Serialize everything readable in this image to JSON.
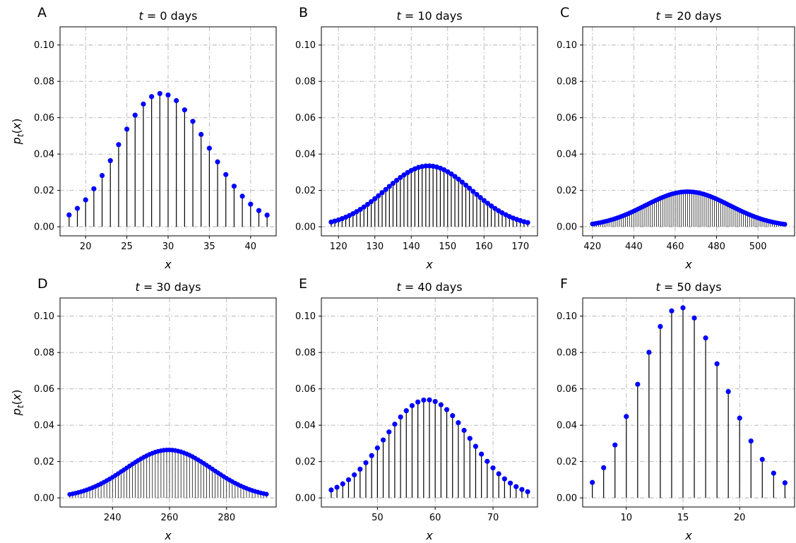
{
  "chart_data": [
    {
      "type": "stem",
      "panel_label": "A",
      "title_prefix": "t",
      "title_rest": " = 0 days",
      "xlabel": "x",
      "ylabel": "p_t(x)",
      "ylim": [
        -0.005,
        0.11
      ],
      "xlim": [
        16.9,
        43.1
      ],
      "xticks": [
        20,
        25,
        30,
        35,
        40
      ],
      "yticks": [
        "0.00",
        "0.02",
        "0.04",
        "0.06",
        "0.08",
        "0.10"
      ],
      "x": [
        18,
        19,
        20,
        21,
        22,
        23,
        24,
        25,
        26,
        27,
        28,
        29,
        30,
        31,
        32,
        33,
        34,
        35,
        36,
        37,
        38,
        39,
        40,
        41,
        42
      ],
      "values": [
        0.0065,
        0.0101,
        0.0148,
        0.0209,
        0.0282,
        0.0364,
        0.0452,
        0.0537,
        0.0614,
        0.0675,
        0.0716,
        0.0733,
        0.0725,
        0.0694,
        0.0643,
        0.058,
        0.0508,
        0.0432,
        0.0357,
        0.0287,
        0.0223,
        0.0168,
        0.0124,
        0.0089,
        0.0064
      ]
    },
    {
      "type": "stem",
      "panel_label": "B",
      "title_prefix": "t",
      "title_rest": " = 10 days",
      "xlabel": "x",
      "ylabel": "",
      "ylim": [
        -0.005,
        0.11
      ],
      "xlim": [
        115.3,
        174.7
      ],
      "xticks": [
        120,
        130,
        140,
        150,
        160,
        170
      ],
      "yticks": [
        "0.00",
        "0.02",
        "0.04",
        "0.06",
        "0.08",
        "0.10"
      ],
      "gauss": {
        "start": 118,
        "end": 172,
        "step": 1,
        "mu": 144.7,
        "sigma": 11.8,
        "peak": 0.0335
      }
    },
    {
      "type": "stem",
      "panel_label": "C",
      "title_prefix": "t",
      "title_rest": " = 20 days",
      "xlabel": "x",
      "ylabel": "",
      "ylim": [
        -0.005,
        0.11
      ],
      "xlim": [
        415.3,
        517.7
      ],
      "xticks": [
        420,
        440,
        460,
        480,
        500
      ],
      "yticks": [
        "0.00",
        "0.02",
        "0.04",
        "0.06",
        "0.08",
        "0.10"
      ],
      "gauss": {
        "start": 420,
        "end": 513,
        "step": 1,
        "mu": 466,
        "sigma": 20.5,
        "peak": 0.0193
      }
    },
    {
      "type": "stem",
      "panel_label": "D",
      "title_prefix": "t",
      "title_rest": " = 30 days",
      "xlabel": "x",
      "ylabel": "p_t(x)",
      "ylim": [
        -0.005,
        0.11
      ],
      "xlim": [
        221.6,
        297.4
      ],
      "xticks": [
        240,
        260,
        280
      ],
      "yticks": [
        "0.00",
        "0.02",
        "0.04",
        "0.06",
        "0.08",
        "0.10"
      ],
      "gauss": {
        "start": 225,
        "end": 294,
        "step": 1,
        "mu": 259.7,
        "sigma": 15.2,
        "peak": 0.0264
      }
    },
    {
      "type": "stem",
      "panel_label": "E",
      "title_prefix": "t",
      "title_rest": " = 40 days",
      "xlabel": "x",
      "ylabel": "",
      "ylim": [
        -0.005,
        0.11
      ],
      "xlim": [
        40.3,
        77.7
      ],
      "xticks": [
        50,
        60,
        70
      ],
      "yticks": [
        "0.00",
        "0.02",
        "0.04",
        "0.06",
        "0.08",
        "0.10"
      ],
      "gauss": {
        "start": 42,
        "end": 76,
        "step": 1,
        "mu": 58.6,
        "sigma": 7.4,
        "peak": 0.054
      }
    },
    {
      "type": "stem",
      "panel_label": "F",
      "title_prefix": "t",
      "title_rest": " = 50 days",
      "xlabel": "x",
      "ylabel": "",
      "ylim": [
        -0.005,
        0.11
      ],
      "xlim": [
        6.15,
        24.85
      ],
      "xticks": [
        10,
        15,
        20
      ],
      "yticks": [
        "0.00",
        "0.02",
        "0.04",
        "0.06",
        "0.08",
        "0.10"
      ],
      "x": [
        7,
        8,
        9,
        10,
        11,
        12,
        13,
        14,
        15,
        16,
        17,
        18,
        19,
        20,
        21,
        22,
        23,
        24
      ],
      "values": [
        0.0085,
        0.0166,
        0.0291,
        0.0448,
        0.0625,
        0.0801,
        0.0943,
        0.1029,
        0.1046,
        0.099,
        0.088,
        0.0738,
        0.0585,
        0.0439,
        0.0313,
        0.0212,
        0.0136,
        0.0083
      ]
    }
  ],
  "colors": {
    "marker": "#0000ff",
    "stem": "#000000",
    "grid": "#b0b0b0"
  }
}
